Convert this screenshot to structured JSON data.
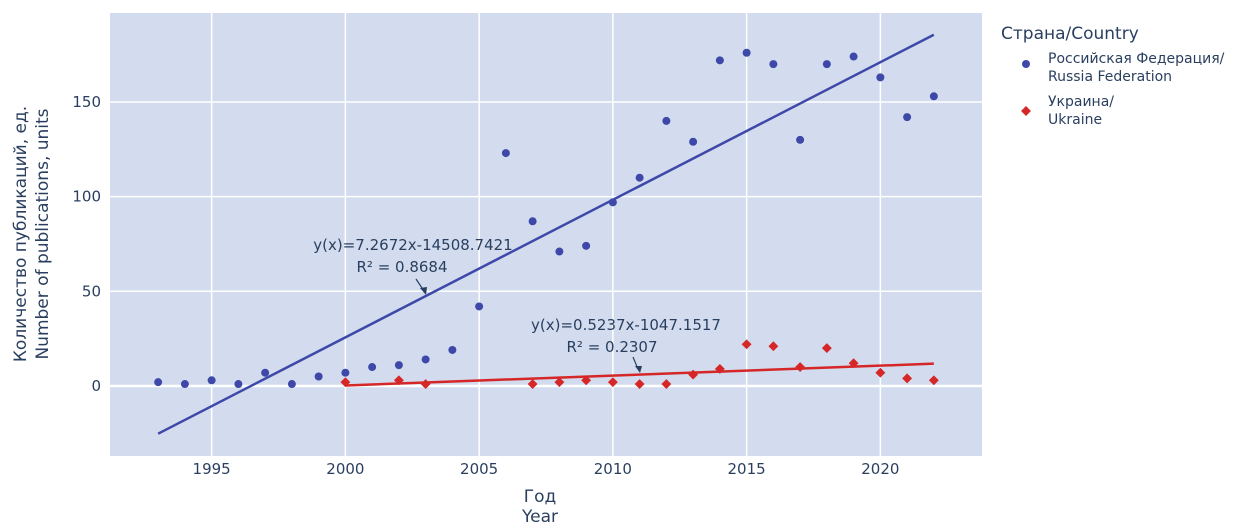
{
  "chart_data": {
    "type": "scatter",
    "title": "",
    "xlabel": [
      "Год",
      "Year"
    ],
    "ylabel": [
      "Количество публикаций, ед.",
      "Number of publications, units"
    ],
    "xlim": [
      1991.2,
      2023.8
    ],
    "ylim": [
      -37,
      197
    ],
    "x_ticks": [
      1995,
      2000,
      2005,
      2010,
      2015,
      2020
    ],
    "y_ticks": [
      0,
      50,
      100,
      150
    ],
    "grid": true,
    "legend": {
      "title": "Страна/Country",
      "placement": "right"
    },
    "series": [
      {
        "name": [
          "Российская Федерация/",
          "Russia Federation"
        ],
        "marker": "circle",
        "color": "#3e48a8",
        "x": [
          1993,
          1994,
          1995,
          1996,
          1997,
          1998,
          1999,
          2000,
          2001,
          2002,
          2003,
          2004,
          2005,
          2006,
          2007,
          2008,
          2009,
          2010,
          2011,
          2012,
          2013,
          2014,
          2015,
          2016,
          2017,
          2018,
          2019,
          2020,
          2021,
          2022
        ],
        "y": [
          2,
          1,
          3,
          1,
          7,
          1,
          5,
          7,
          10,
          11,
          14,
          19,
          42,
          123,
          87,
          71,
          74,
          97,
          110,
          140,
          129,
          172,
          176,
          170,
          130,
          170,
          174,
          163,
          142,
          153
        ],
        "trend": {
          "slope": 7.2672,
          "intercept": -14508.7421,
          "x_range": [
            1993,
            2022
          ],
          "color": "#3e48a8",
          "equation": "y(x)=7.2672x-14508.7421",
          "r2": "R² = 0.8684"
        }
      },
      {
        "name": [
          "Украина/",
          "Ukraine"
        ],
        "marker": "diamond",
        "color": "#d62728",
        "x": [
          2000,
          2002,
          2003,
          2007,
          2008,
          2009,
          2010,
          2011,
          2012,
          2013,
          2014,
          2015,
          2016,
          2017,
          2018,
          2019,
          2020,
          2021,
          2022
        ],
        "y": [
          2,
          3,
          1,
          1,
          2,
          3,
          2,
          1,
          1,
          6,
          9,
          22,
          21,
          10,
          20,
          12,
          7,
          4,
          3
        ],
        "trend": {
          "slope": 0.5237,
          "intercept": -1047.1517,
          "x_range": [
            2000,
            2022
          ],
          "color": "#d62728",
          "equation": "y(x)=0.5237x-1047.1517",
          "r2": "R² = 0.2307"
        }
      }
    ]
  },
  "colors": {
    "plot_background": "#d2dcee",
    "grid": "#ffffff"
  }
}
